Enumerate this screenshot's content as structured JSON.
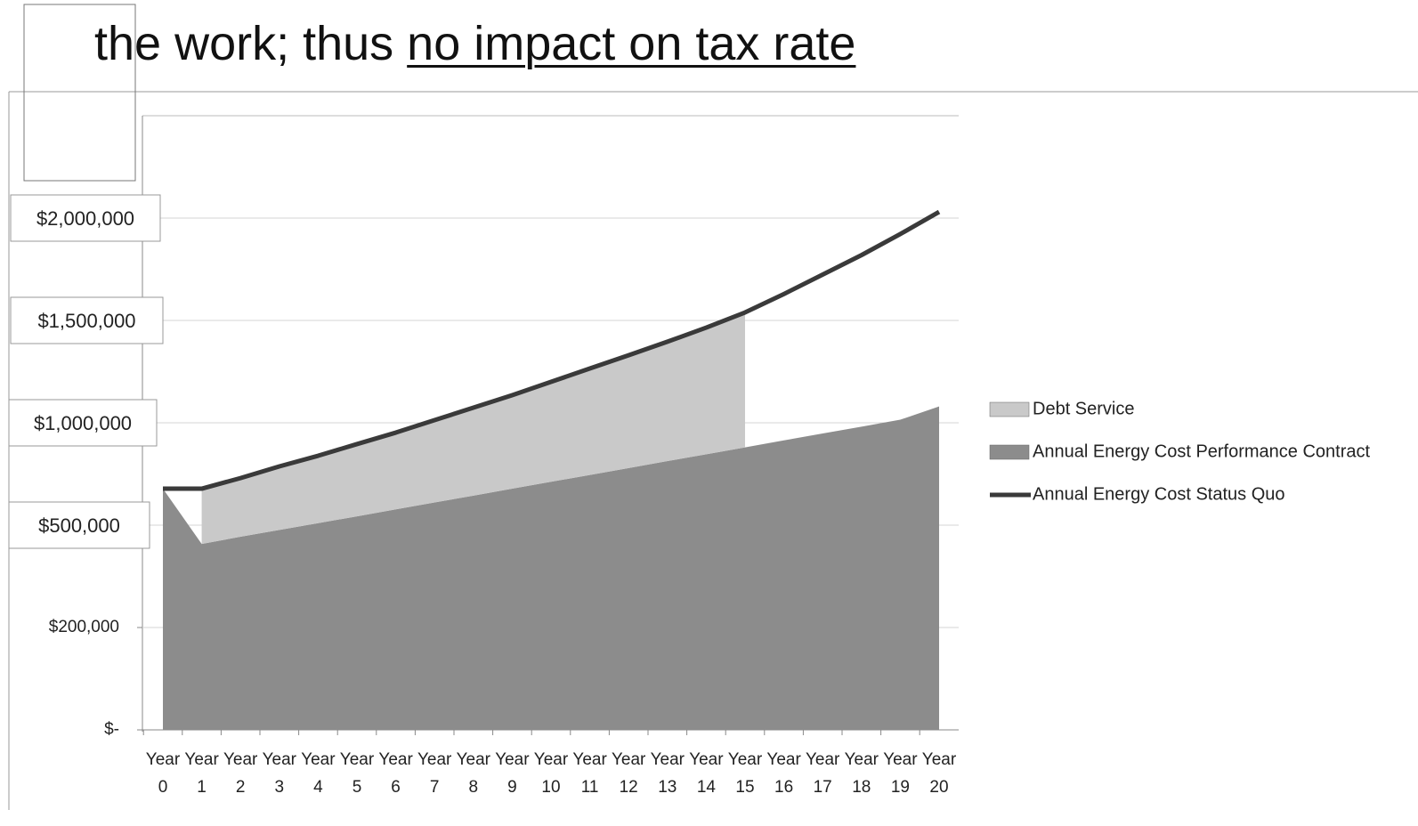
{
  "chart_data": {
    "type": "area",
    "stacked": true,
    "heading_text": "the work; thus",
    "heading_underlined": "no impact on tax rate",
    "categories": [
      "Year 0",
      "Year 1",
      "Year 2",
      "Year 3",
      "Year 4",
      "Year 5",
      "Year 6",
      "Year 7",
      "Year 8",
      "Year 9",
      "Year 10",
      "Year 11",
      "Year 12",
      "Year 13",
      "Year 14",
      "Year 15",
      "Year 16",
      "Year 17",
      "Year 18",
      "Year 19",
      "Year 20"
    ],
    "series": [
      {
        "name": "Debt Service",
        "type": "area",
        "color": "#c9c9c9",
        "values": [
          null,
          233000,
          264000,
          301000,
          329000,
          353000,
          375000,
          402000,
          430000,
          457000,
          488000,
          520000,
          551000,
          583000,
          619000,
          659000,
          null,
          null,
          null,
          null,
          null
        ]
      },
      {
        "name": "Annual Energy Cost Performance Contract",
        "type": "area",
        "color": "#8c8c8c",
        "values": [
          678000,
          445000,
          466000,
          486000,
          510000,
          543000,
          577000,
          611000,
          644000,
          678000,
          712000,
          745000,
          779000,
          813000,
          846000,
          880000,
          914000,
          948000,
          981000,
          1015000,
          1080000
        ]
      },
      {
        "name": "Annual Energy Cost Status Quo",
        "type": "line",
        "color": "#3a3a3a",
        "values": [
          678000,
          678000,
          730000,
          787000,
          839000,
          896000,
          952000,
          1013000,
          1074000,
          1135000,
          1200000,
          1265000,
          1330000,
          1396000,
          1465000,
          1539000,
          1629000,
          1724000,
          1819000,
          1922000,
          2030000
        ]
      }
    ],
    "ylim": [
      0,
      2500000
    ],
    "yticks": [
      {
        "value": 0,
        "label": "$-"
      },
      {
        "value": 200000,
        "label": "$200,000"
      },
      {
        "value": 500000,
        "label": "$500,000"
      },
      {
        "value": 1000000,
        "label": "$1,000,000"
      },
      {
        "value": 1500000,
        "label": "$1,500,000"
      },
      {
        "value": 2000000,
        "label": "$2,000,000"
      }
    ],
    "grid": true,
    "legend": "right"
  }
}
